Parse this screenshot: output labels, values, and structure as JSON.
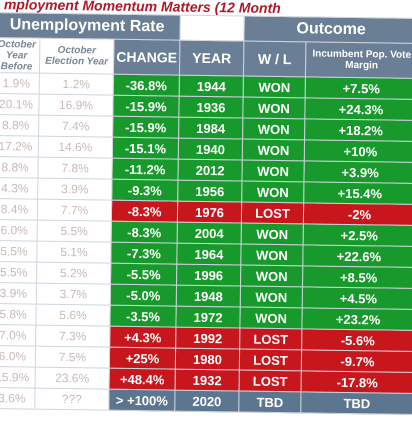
{
  "title": "mployment Momentum Matters (12 Month",
  "header": {
    "left_group": "Unemployment Rate",
    "right_group": "Outcome",
    "columns": [
      "October Year Before",
      "October Election Year",
      "CHANGE",
      "YEAR",
      "W / L",
      "Incumbent Pop. Vote Margin"
    ]
  },
  "rows": [
    {
      "color": "#179a2b",
      "cells": [
        "1.9%",
        "1.2%",
        "-36.8%",
        "1944",
        "WON",
        "+7.5%"
      ]
    },
    {
      "color": "#179a2b",
      "cells": [
        "20.1%",
        "16.9%",
        "-15.9%",
        "1936",
        "WON",
        "+24.3%"
      ]
    },
    {
      "color": "#179a2b",
      "cells": [
        "8.8%",
        "7.4%",
        "-15.9%",
        "1984",
        "WON",
        "+18.2%"
      ]
    },
    {
      "color": "#179a2b",
      "cells": [
        "17.2%",
        "14.6%",
        "-15.1%",
        "1940",
        "WON",
        "+10%"
      ]
    },
    {
      "color": "#179a2b",
      "cells": [
        "8.8%",
        "7.8%",
        "-11.2%",
        "2012",
        "WON",
        "+3.9%"
      ]
    },
    {
      "color": "#179a2b",
      "cells": [
        "4.3%",
        "3.9%",
        "-9.3%",
        "1956",
        "WON",
        "+15.4%"
      ]
    },
    {
      "color": "#c8161d",
      "cells": [
        "8.4%",
        "7.7%",
        "-8.3%",
        "1976",
        "LOST",
        "-2%"
      ]
    },
    {
      "color": "#179a2b",
      "cells": [
        "6.0%",
        "5.5%",
        "-8.3%",
        "2004",
        "WON",
        "+2.5%"
      ]
    },
    {
      "color": "#179a2b",
      "cells": [
        "5.5%",
        "5.1%",
        "-7.3%",
        "1964",
        "WON",
        "+22.6%"
      ]
    },
    {
      "color": "#179a2b",
      "cells": [
        "5.5%",
        "5.2%",
        "-5.5%",
        "1996",
        "WON",
        "+8.5%"
      ]
    },
    {
      "color": "#179a2b",
      "cells": [
        "3.9%",
        "3.7%",
        "-5.0%",
        "1948",
        "WON",
        "+4.5%"
      ]
    },
    {
      "color": "#179a2b",
      "cells": [
        "5.8%",
        "5.6%",
        "-3.5%",
        "1972",
        "WON",
        "+23.2%"
      ]
    },
    {
      "color": "#c8161d",
      "cells": [
        "7.0%",
        "7.3%",
        "+4.3%",
        "1992",
        "LOST",
        "-5.6%"
      ]
    },
    {
      "color": "#c8161d",
      "cells": [
        "6.0%",
        "7.5%",
        "+25%",
        "1980",
        "LOST",
        "-9.7%"
      ]
    },
    {
      "color": "#c8161d",
      "cells": [
        "15.9%",
        "23.6%",
        "+48.4%",
        "1932",
        "LOST",
        "-17.8%"
      ]
    },
    {
      "color": "#5d7690",
      "cells": [
        "3.6%",
        "???",
        "> +100%",
        "2020",
        "TBD",
        "TBD"
      ]
    }
  ]
}
